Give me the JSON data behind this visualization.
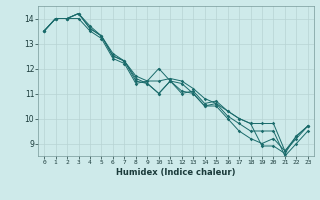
{
  "xlabel": "Humidex (Indice chaleur)",
  "ylabel": "",
  "background_color": "#ceeaea",
  "grid_color": "#b8d4d4",
  "line_color": "#1a6b6b",
  "xlim": [
    -0.5,
    23.5
  ],
  "ylim": [
    8.5,
    14.5
  ],
  "yticks": [
    9,
    10,
    11,
    12,
    13,
    14
  ],
  "series": [
    [
      13.5,
      14.0,
      14.0,
      14.2,
      13.6,
      13.3,
      12.5,
      12.3,
      11.5,
      11.4,
      11.0,
      11.5,
      11.0,
      11.1,
      10.6,
      10.7,
      10.3,
      10.0,
      9.8,
      9.8,
      9.8,
      8.7,
      9.3,
      9.7
    ],
    [
      13.5,
      14.0,
      14.0,
      14.0,
      13.5,
      13.2,
      12.4,
      12.2,
      11.4,
      11.5,
      12.0,
      11.5,
      11.4,
      11.0,
      10.5,
      10.6,
      10.1,
      9.8,
      9.5,
      9.5,
      9.5,
      8.5,
      9.0,
      9.5
    ],
    [
      13.5,
      14.0,
      14.0,
      14.2,
      13.7,
      13.3,
      12.6,
      12.3,
      11.6,
      11.4,
      11.0,
      11.5,
      11.1,
      11.0,
      10.5,
      10.5,
      10.0,
      9.5,
      9.2,
      9.0,
      9.2,
      8.7,
      9.2,
      9.7
    ],
    [
      13.5,
      14.0,
      14.0,
      14.2,
      13.6,
      13.3,
      12.5,
      12.3,
      11.7,
      11.5,
      11.5,
      11.6,
      11.5,
      11.2,
      10.8,
      10.6,
      10.3,
      10.0,
      9.8,
      8.9,
      8.9,
      8.6,
      9.3,
      9.7
    ]
  ],
  "xtick_labels": [
    "0",
    "1",
    "2",
    "3",
    "4",
    "5",
    "6",
    "7",
    "8",
    "9",
    "10",
    "11",
    "12",
    "13",
    "14",
    "15",
    "16",
    "17",
    "18",
    "19",
    "20",
    "21",
    "22",
    "23"
  ]
}
